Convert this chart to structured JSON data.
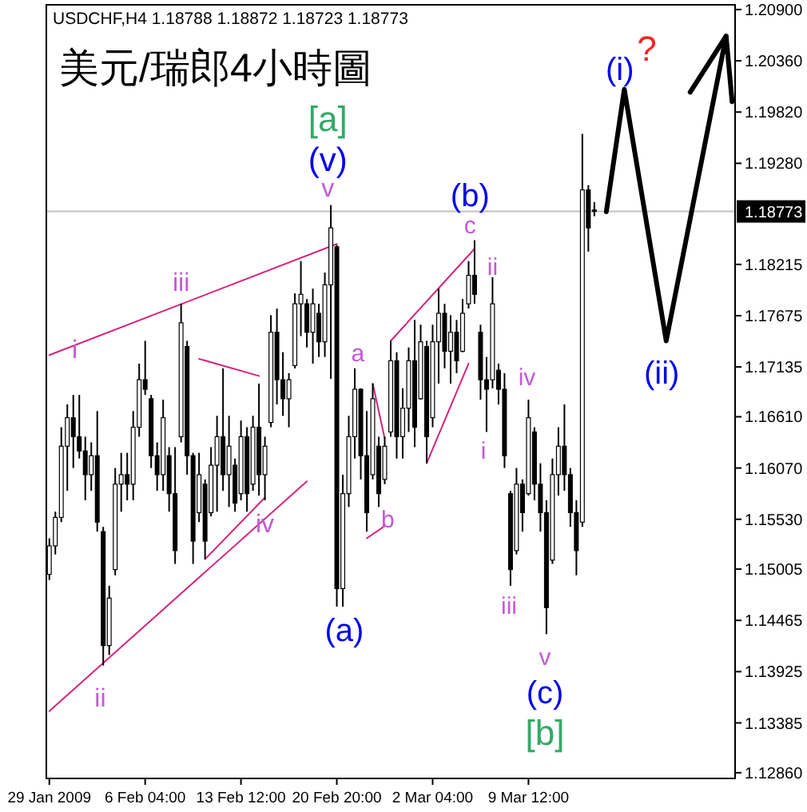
{
  "chart_data": {
    "type": "candlestick",
    "title": "美元/瑞郎4小時圖",
    "subtitle": "USDCHF,H4  1.18788 1.18872 1.18723 1.18773",
    "categories": [
      "29 Jan 2009",
      null,
      null,
      null,
      null,
      null,
      null,
      null,
      null,
      null,
      null,
      null,
      null,
      null,
      null,
      null,
      "6 Feb 04:00",
      null,
      null,
      null,
      null,
      null,
      null,
      null,
      null,
      null,
      null,
      null,
      null,
      null,
      null,
      null,
      "13 Feb 12:00",
      null,
      null,
      null,
      null,
      null,
      null,
      null,
      null,
      null,
      null,
      null,
      null,
      null,
      null,
      null,
      "20 Feb 20:00",
      null,
      null,
      null,
      null,
      null,
      null,
      null,
      null,
      null,
      null,
      null,
      null,
      null,
      null,
      null,
      "2 Mar 04:00",
      null,
      null,
      null,
      null,
      null,
      null,
      null,
      null,
      null,
      null,
      null,
      null,
      null,
      null,
      null,
      "9 Mar 12:00",
      null,
      null,
      null,
      null,
      null,
      null,
      null,
      null,
      null,
      null,
      null,
      null,
      null,
      null,
      null,
      null,
      null,
      null,
      null,
      null,
      null,
      null,
      null,
      null,
      null,
      null,
      null,
      null,
      null,
      null,
      null,
      null,
      null,
      null
    ],
    "ohlc": [
      [
        1.1495,
        1.1533,
        1.1489,
        1.1525
      ],
      [
        1.1525,
        1.1561,
        1.1516,
        1.1555
      ],
      [
        1.1555,
        1.165,
        1.155,
        1.163
      ],
      [
        1.163,
        1.1674,
        1.1583,
        1.166
      ],
      [
        1.166,
        1.1684,
        1.1607,
        1.164
      ],
      [
        1.164,
        1.1684,
        1.1617,
        1.1625
      ],
      [
        1.1625,
        1.164,
        1.1573,
        1.16
      ],
      [
        1.16,
        1.1634,
        1.1583,
        1.162
      ],
      [
        1.162,
        1.1667,
        1.154,
        1.155
      ],
      [
        1.154,
        1.1545,
        1.1399,
        1.142
      ],
      [
        1.142,
        1.1483,
        1.141,
        1.147
      ],
      [
        1.15,
        1.1607,
        1.1494,
        1.159
      ],
      [
        1.159,
        1.1623,
        1.1561,
        1.16
      ],
      [
        1.16,
        1.1623,
        1.1573,
        1.159
      ],
      [
        1.159,
        1.1667,
        1.1573,
        1.165
      ],
      [
        1.165,
        1.1717,
        1.164,
        1.17
      ],
      [
        1.17,
        1.1741,
        1.1684,
        1.169
      ],
      [
        1.168,
        1.1684,
        1.1607,
        1.162
      ],
      [
        1.162,
        1.1634,
        1.1583,
        1.16
      ],
      [
        1.16,
        1.1679,
        1.1583,
        1.166
      ],
      [
        1.162,
        1.1629,
        1.1561,
        1.158
      ],
      [
        1.158,
        1.1629,
        1.1506,
        1.152
      ],
      [
        1.164,
        1.178,
        1.1634,
        1.176
      ],
      [
        1.1735,
        1.1741,
        1.16,
        1.162
      ],
      [
        1.162,
        1.1623,
        1.1506,
        1.153
      ],
      [
        1.156,
        1.1623,
        1.155,
        1.16
      ],
      [
        1.159,
        1.1595,
        1.1511,
        1.153
      ],
      [
        1.156,
        1.1629,
        1.1556,
        1.161
      ],
      [
        1.161,
        1.1662,
        1.1561,
        1.164
      ],
      [
        1.164,
        1.1712,
        1.1583,
        1.16
      ],
      [
        1.16,
        1.1662,
        1.1566,
        1.163
      ],
      [
        1.161,
        1.1617,
        1.1561,
        1.157
      ],
      [
        1.158,
        1.1657,
        1.1573,
        1.164
      ],
      [
        1.164,
        1.165,
        1.1561,
        1.158
      ],
      [
        1.159,
        1.1662,
        1.1583,
        1.165
      ],
      [
        1.165,
        1.1696,
        1.1578,
        1.16
      ],
      [
        1.16,
        1.164,
        1.1573,
        1.163
      ],
      [
        1.1655,
        1.1768,
        1.165,
        1.175
      ],
      [
        1.175,
        1.1775,
        1.1674,
        1.17
      ],
      [
        1.17,
        1.1729,
        1.1662,
        1.168
      ],
      [
        1.168,
        1.1707,
        1.165,
        1.17
      ],
      [
        1.1715,
        1.1791,
        1.1712,
        1.178
      ],
      [
        1.178,
        1.1825,
        1.1746,
        1.179
      ],
      [
        1.178,
        1.1785,
        1.1734,
        1.175
      ],
      [
        1.175,
        1.1796,
        1.1717,
        1.178
      ],
      [
        1.177,
        1.178,
        1.1724,
        1.174
      ],
      [
        1.174,
        1.1813,
        1.1724,
        1.18
      ],
      [
        1.18,
        1.1884,
        1.1701,
        1.186
      ],
      [
        1.184,
        1.1842,
        1.1461,
        1.148
      ],
      [
        1.148,
        1.16,
        1.1461,
        1.158
      ],
      [
        1.158,
        1.1662,
        1.1566,
        1.164
      ],
      [
        1.164,
        1.1712,
        1.1617,
        1.169
      ],
      [
        1.169,
        1.1691,
        1.1595,
        1.162
      ],
      [
        1.162,
        1.1667,
        1.154,
        1.156
      ],
      [
        1.16,
        1.1696,
        1.1595,
        1.168
      ],
      [
        1.163,
        1.164,
        1.1566,
        1.158
      ],
      [
        1.1595,
        1.164,
        1.159,
        1.163
      ],
      [
        1.1645,
        1.1741,
        1.164,
        1.172
      ],
      [
        1.172,
        1.1729,
        1.1617,
        1.164
      ],
      [
        1.164,
        1.1691,
        1.1617,
        1.167
      ],
      [
        1.167,
        1.1734,
        1.1645,
        1.172
      ],
      [
        1.172,
        1.1763,
        1.1629,
        1.165
      ],
      [
        1.168,
        1.1758,
        1.1679,
        1.174
      ],
      [
        1.1735,
        1.1741,
        1.1612,
        1.164
      ],
      [
        1.166,
        1.1758,
        1.165,
        1.174
      ],
      [
        1.174,
        1.1796,
        1.1696,
        1.177
      ],
      [
        1.177,
        1.178,
        1.1712,
        1.173
      ],
      [
        1.173,
        1.1768,
        1.1696,
        1.175
      ],
      [
        1.175,
        1.1763,
        1.1707,
        1.172
      ],
      [
        1.173,
        1.1785,
        1.1729,
        1.177
      ],
      [
        1.178,
        1.1825,
        1.1775,
        1.181
      ],
      [
        1.181,
        1.1847,
        1.178,
        1.179
      ],
      [
        1.175,
        1.1758,
        1.1679,
        1.17
      ],
      [
        1.17,
        1.1724,
        1.1645,
        1.169
      ],
      [
        1.17,
        1.1808,
        1.1691,
        1.178
      ],
      [
        1.171,
        1.1717,
        1.1674,
        1.169
      ],
      [
        1.169,
        1.1707,
        1.1607,
        1.162
      ],
      [
        1.158,
        1.1583,
        1.1483,
        1.15
      ],
      [
        1.152,
        1.1607,
        1.1516,
        1.159
      ],
      [
        1.159,
        1.1595,
        1.154,
        1.156
      ],
      [
        1.158,
        1.1679,
        1.1578,
        1.166
      ],
      [
        1.1645,
        1.165,
        1.1573,
        1.159
      ],
      [
        1.159,
        1.1612,
        1.154,
        1.156
      ],
      [
        1.156,
        1.1573,
        1.1432,
        1.146
      ],
      [
        1.151,
        1.1617,
        1.1506,
        1.16
      ],
      [
        1.16,
        1.165,
        1.1578,
        1.163
      ],
      [
        1.163,
        1.1674,
        1.1583,
        1.16
      ],
      [
        1.16,
        1.1607,
        1.1545,
        1.156
      ],
      [
        1.156,
        1.1573,
        1.1494,
        1.152
      ],
      [
        1.155,
        1.1959,
        1.1545,
        1.19
      ],
      [
        1.19,
        1.1905,
        1.1835,
        1.186
      ],
      [
        1.18788,
        1.18872,
        1.18723,
        1.18773
      ],
      null,
      null,
      null,
      null,
      null,
      null,
      null,
      null,
      null,
      null,
      null,
      null,
      null,
      null,
      null,
      null,
      null,
      null,
      null,
      null,
      null,
      null,
      null
    ],
    "series": [
      {
        "type": "line",
        "color": "#000000",
        "values": [
          null,
          null,
          null,
          null,
          null,
          null,
          null,
          null,
          null,
          null,
          null,
          null,
          null,
          null,
          null,
          null,
          null,
          null,
          null,
          null,
          null,
          null,
          null,
          null,
          null,
          null,
          null,
          null,
          null,
          null,
          null,
          null,
          null,
          null,
          null,
          null,
          null,
          null,
          null,
          null,
          null,
          null,
          null,
          null,
          null,
          null,
          null,
          null,
          null,
          null,
          null,
          null,
          null,
          null,
          null,
          null,
          null,
          null,
          null,
          null,
          null,
          null,
          null,
          null,
          null,
          null,
          null,
          null,
          null,
          null,
          null,
          null,
          null,
          null,
          null,
          null,
          null,
          null,
          null,
          null,
          null,
          null,
          null,
          null,
          null,
          null,
          null,
          null,
          null,
          null,
          null,
          null,
          null,
          1.1877,
          null,
          null,
          1.2006,
          null,
          null,
          null,
          null,
          null,
          null,
          1.1741,
          null,
          null,
          null,
          null,
          null,
          null,
          null,
          null,
          null,
          1.2062,
          1.1993
        ]
      },
      {
        "type": "line",
        "color": "#000000",
        "values": [
          null,
          null,
          null,
          null,
          null,
          null,
          null,
          null,
          null,
          null,
          null,
          null,
          null,
          null,
          null,
          null,
          null,
          null,
          null,
          null,
          null,
          null,
          null,
          null,
          null,
          null,
          null,
          null,
          null,
          null,
          null,
          null,
          null,
          null,
          null,
          null,
          null,
          null,
          null,
          null,
          null,
          null,
          null,
          null,
          null,
          null,
          null,
          null,
          null,
          null,
          null,
          null,
          null,
          null,
          null,
          null,
          null,
          null,
          null,
          null,
          null,
          null,
          null,
          null,
          null,
          null,
          null,
          null,
          null,
          null,
          null,
          null,
          null,
          null,
          null,
          null,
          null,
          null,
          null,
          null,
          null,
          null,
          null,
          null,
          null,
          null,
          null,
          null,
          null,
          null,
          null,
          null,
          null,
          null,
          null,
          null,
          null,
          null,
          null,
          null,
          null,
          null,
          null,
          null,
          null,
          null,
          null,
          1.2003,
          null,
          null,
          null,
          null,
          null,
          1.2062,
          null
        ]
      },
      {
        "type": "line",
        "color": "#d4247f",
        "values": [
          1.1726,
          null,
          null,
          null,
          null,
          null,
          null,
          null,
          null,
          null,
          null,
          null,
          null,
          null,
          null,
          null,
          null,
          null,
          null,
          null,
          null,
          null,
          null,
          null,
          null,
          null,
          null,
          null,
          null,
          null,
          null,
          null,
          null,
          null,
          null,
          null,
          null,
          null,
          null,
          null,
          null,
          null,
          null,
          null,
          null,
          null,
          null,
          null,
          1.1843,
          null,
          null,
          null,
          null,
          null,
          null,
          null,
          null,
          null,
          null,
          null,
          null,
          null,
          null,
          null,
          null,
          null,
          null,
          null,
          null,
          null,
          null,
          null,
          null,
          null,
          null,
          null,
          null,
          null,
          null,
          null,
          null,
          null,
          null,
          null,
          null,
          null,
          null,
          null,
          null,
          null,
          null,
          null,
          null,
          null,
          null,
          null,
          null,
          null,
          null,
          null,
          null,
          null,
          null,
          null,
          null,
          null,
          null,
          null,
          null,
          null,
          null,
          null,
          null,
          null,
          null
        ]
      },
      {
        "type": "line",
        "color": "#d4247f",
        "values": [
          1.1351,
          null,
          null,
          null,
          null,
          null,
          null,
          null,
          null,
          null,
          null,
          null,
          null,
          null,
          null,
          null,
          null,
          null,
          null,
          null,
          null,
          null,
          null,
          null,
          null,
          null,
          null,
          null,
          null,
          null,
          null,
          null,
          null,
          null,
          null,
          null,
          null,
          null,
          null,
          null,
          null,
          null,
          null,
          1.1593,
          null,
          null,
          null,
          null,
          null,
          null,
          null,
          null,
          null,
          null,
          null,
          null,
          null,
          null,
          null,
          null,
          null,
          null,
          null,
          null,
          null,
          null,
          null,
          null,
          null,
          null,
          null,
          null,
          null,
          null,
          null,
          null,
          null,
          null,
          null,
          null,
          null,
          null,
          null,
          null,
          null,
          null,
          null,
          null,
          null,
          null,
          null,
          null,
          null,
          null,
          null,
          null,
          null,
          null,
          null,
          null,
          null,
          null,
          null,
          null,
          null,
          null,
          null,
          null,
          null,
          null,
          null,
          null,
          null,
          null,
          null
        ]
      },
      {
        "type": "line",
        "color": "#d4247f",
        "values": [
          null,
          null,
          null,
          null,
          null,
          null,
          null,
          null,
          null,
          null,
          null,
          null,
          null,
          null,
          null,
          null,
          null,
          null,
          null,
          null,
          null,
          null,
          null,
          null,
          null,
          null,
          1.1511,
          null,
          null,
          null,
          null,
          null,
          null,
          null,
          null,
          null,
          1.1576,
          null,
          null,
          null,
          null,
          null,
          null,
          null,
          null,
          null,
          null,
          null,
          null,
          null,
          null,
          null,
          null,
          null,
          null,
          null,
          null,
          null,
          null,
          null,
          null,
          null,
          null,
          null,
          null,
          null,
          null,
          null,
          null,
          null,
          null,
          null,
          null,
          null,
          null,
          null,
          null,
          null,
          null,
          null,
          null,
          null,
          null,
          null,
          null,
          null,
          null,
          null,
          null,
          null,
          null,
          null,
          null,
          null,
          null,
          null,
          null,
          null,
          null,
          null,
          null,
          null,
          null,
          null,
          null,
          null,
          null,
          null,
          null,
          null,
          null,
          null,
          null,
          null,
          null
        ]
      },
      {
        "type": "line",
        "color": "#d4247f",
        "values": [
          null,
          null,
          null,
          null,
          null,
          null,
          null,
          null,
          null,
          null,
          null,
          null,
          null,
          null,
          null,
          null,
          null,
          null,
          null,
          null,
          null,
          null,
          null,
          null,
          null,
          1.1722,
          null,
          null,
          null,
          null,
          null,
          null,
          null,
          null,
          null,
          1.1704,
          null,
          null,
          null,
          null,
          null,
          null,
          null,
          null,
          null,
          null,
          null,
          null,
          null,
          null,
          null,
          null,
          null,
          null,
          null,
          null,
          null,
          null,
          null,
          null,
          null,
          null,
          null,
          null,
          null,
          null,
          null,
          null,
          null,
          null,
          null,
          null,
          null,
          null,
          null,
          null,
          null,
          null,
          null,
          null,
          null,
          null,
          null,
          null,
          null,
          null,
          null,
          null,
          null,
          null,
          null,
          null,
          null,
          null,
          null,
          null,
          null,
          null,
          null,
          null,
          null,
          null,
          null,
          null,
          null,
          null,
          null,
          null,
          null,
          null,
          null,
          null,
          null,
          null,
          null
        ]
      },
      {
        "type": "line",
        "color": "#d4247f",
        "values": [
          null,
          null,
          null,
          null,
          null,
          null,
          null,
          null,
          null,
          null,
          null,
          null,
          null,
          null,
          null,
          null,
          null,
          null,
          null,
          null,
          null,
          null,
          null,
          null,
          null,
          null,
          null,
          null,
          null,
          null,
          null,
          null,
          null,
          null,
          null,
          null,
          null,
          null,
          null,
          null,
          null,
          null,
          null,
          null,
          null,
          null,
          null,
          null,
          null,
          null,
          null,
          null,
          null,
          null,
          1.1696,
          null,
          1.1638,
          null,
          null,
          null,
          null,
          null,
          null,
          null,
          null,
          null,
          null,
          null,
          null,
          null,
          null,
          null,
          null,
          null,
          null,
          null,
          null,
          null,
          null,
          null,
          null,
          null,
          null,
          null,
          null,
          null,
          null,
          null,
          null,
          null,
          null,
          null,
          null,
          null,
          null,
          null,
          null,
          null,
          null,
          null,
          null,
          null,
          null,
          null,
          null,
          null,
          null,
          null,
          null,
          null,
          null,
          null,
          null,
          null,
          null
        ]
      },
      {
        "type": "line",
        "color": "#d4247f",
        "values": [
          null,
          null,
          null,
          null,
          null,
          null,
          null,
          null,
          null,
          null,
          null,
          null,
          null,
          null,
          null,
          null,
          null,
          null,
          null,
          null,
          null,
          null,
          null,
          null,
          null,
          null,
          null,
          null,
          null,
          null,
          null,
          null,
          null,
          null,
          null,
          null,
          null,
          null,
          null,
          null,
          null,
          null,
          null,
          null,
          null,
          null,
          null,
          null,
          null,
          null,
          null,
          null,
          null,
          1.1533,
          null,
          null,
          1.1546,
          null,
          null,
          null,
          null,
          null,
          null,
          null,
          null,
          null,
          null,
          null,
          null,
          null,
          null,
          null,
          null,
          null,
          null,
          null,
          null,
          null,
          null,
          null,
          null,
          null,
          null,
          null,
          null,
          null,
          null,
          null,
          null,
          null,
          null,
          null,
          null,
          null,
          null,
          null,
          null,
          null,
          null,
          null,
          null,
          null,
          null,
          null,
          null,
          null,
          null,
          null,
          null,
          null,
          null,
          null,
          null,
          null,
          null
        ]
      },
      {
        "type": "line",
        "color": "#d4247f",
        "values": [
          null,
          null,
          null,
          null,
          null,
          null,
          null,
          null,
          null,
          null,
          null,
          null,
          null,
          null,
          null,
          null,
          null,
          null,
          null,
          null,
          null,
          null,
          null,
          null,
          null,
          null,
          null,
          null,
          null,
          null,
          null,
          null,
          null,
          null,
          null,
          null,
          null,
          null,
          null,
          null,
          null,
          null,
          null,
          null,
          null,
          null,
          null,
          null,
          null,
          null,
          null,
          null,
          null,
          null,
          null,
          null,
          null,
          1.1741,
          null,
          null,
          null,
          null,
          null,
          null,
          null,
          null,
          null,
          null,
          null,
          null,
          null,
          1.1838,
          null,
          null,
          null,
          null,
          null,
          null,
          null,
          null,
          null,
          null,
          null,
          null,
          null,
          null,
          null,
          null,
          null,
          null,
          null,
          null,
          null,
          null,
          null,
          null,
          null,
          null,
          null,
          null,
          null,
          null,
          null,
          null,
          null,
          null,
          null,
          null,
          null,
          null,
          null,
          null,
          null,
          null,
          null
        ]
      },
      {
        "type": "line",
        "color": "#d4247f",
        "values": [
          null,
          null,
          null,
          null,
          null,
          null,
          null,
          null,
          null,
          null,
          null,
          null,
          null,
          null,
          null,
          null,
          null,
          null,
          null,
          null,
          null,
          null,
          null,
          null,
          null,
          null,
          null,
          null,
          null,
          null,
          null,
          null,
          null,
          null,
          null,
          null,
          null,
          null,
          null,
          null,
          null,
          null,
          null,
          null,
          null,
          null,
          null,
          null,
          null,
          null,
          null,
          null,
          null,
          null,
          null,
          null,
          null,
          null,
          null,
          null,
          null,
          null,
          null,
          1.1612,
          null,
          null,
          null,
          null,
          null,
          null,
          1.1717,
          null,
          null,
          null,
          null,
          null,
          null,
          null,
          null,
          null,
          null,
          null,
          null,
          null,
          null,
          null,
          null,
          null,
          null,
          null,
          null,
          null,
          null,
          null,
          null,
          null,
          null,
          null,
          null,
          null,
          null,
          null,
          null,
          null,
          null,
          null,
          null,
          null,
          null,
          null,
          null,
          null,
          null,
          null,
          null
        ]
      }
    ],
    "ylim": [
      1.128,
      1.2095
    ],
    "yticks": [
      {
        "value": 1.209,
        "label": "1.20900"
      },
      {
        "value": 1.2036,
        "label": "1.20360"
      },
      {
        "value": 1.1982,
        "label": "1.19820"
      },
      {
        "value": 1.1928,
        "label": "1.19280"
      },
      1.18215,
      1.17675,
      1.17135,
      {
        "value": 1.1661,
        "label": "1.16610"
      },
      {
        "value": 1.1607,
        "label": "1.16070"
      },
      {
        "value": 1.1553,
        "label": "1.15530"
      },
      1.15005,
      1.14465,
      1.13925,
      1.13385,
      {
        "value": 1.1286,
        "label": "1.12860"
      }
    ],
    "ref_lines": [
      {
        "axis": "y",
        "value": 1.18773,
        "label": "1.18773",
        "color": "#c0c0c0"
      }
    ],
    "annotations": [
      "[a]",
      "(v)",
      "v",
      "i",
      "iii",
      "ii",
      "iv",
      "(a)",
      "a",
      "b",
      "(b)",
      "c",
      "ii",
      "iv",
      "i",
      "iii",
      "v",
      "(c)",
      "[b]",
      "(i)",
      "?",
      "(ii)"
    ]
  }
}
